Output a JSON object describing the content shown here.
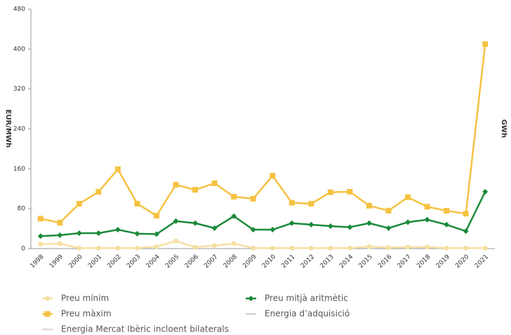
{
  "chart_data": {
    "type": "line",
    "y_label": "EUR/MWh",
    "y2_label": "GWh",
    "categories": [
      "1998",
      "1999",
      "2000",
      "2001",
      "2002",
      "2003",
      "2004",
      "2005",
      "2006",
      "2007",
      "2008",
      "2009",
      "2010",
      "2011",
      "2012",
      "2013",
      "2014",
      "2015",
      "2016",
      "2017",
      "2018",
      "2019",
      "2020",
      "2021"
    ],
    "ylim": [
      0,
      480
    ],
    "yticks": [
      0,
      80,
      160,
      240,
      320,
      400,
      480
    ],
    "grid": false,
    "series": [
      {
        "name": "Preu mínim",
        "color": "#f6dfa3",
        "marker": "circle",
        "values": [
          9,
          10,
          1,
          1,
          1,
          1,
          4,
          15,
          3,
          6,
          10,
          1,
          1,
          1,
          1,
          1,
          1,
          4,
          2,
          3,
          3,
          1,
          1,
          1
        ]
      },
      {
        "name": "Preu mitjà aritmètic",
        "color": "#1b8a3a",
        "marker": "diamond",
        "values": [
          25,
          27,
          31,
          31,
          38,
          30,
          29,
          55,
          51,
          41,
          65,
          38,
          38,
          51,
          48,
          45,
          43,
          51,
          41,
          53,
          58,
          48,
          35,
          114
        ]
      },
      {
        "name": "Preu màxim",
        "color": "#f5c242",
        "marker": "square",
        "values": [
          60,
          52,
          90,
          114,
          159,
          90,
          66,
          128,
          118,
          131,
          104,
          100,
          146,
          92,
          90,
          113,
          114,
          86,
          76,
          103,
          84,
          76,
          70,
          410
        ]
      },
      {
        "name": "Energia d’adquisició",
        "color": "#d0d0d0",
        "marker": "none",
        "axis": "y2",
        "values": [
          null,
          null,
          null,
          null,
          null,
          null,
          null,
          null,
          null,
          null,
          null,
          null,
          null,
          null,
          null,
          null,
          null,
          null,
          null,
          null,
          null,
          null,
          null,
          null
        ]
      },
      {
        "name": "Energia Mercat Ibèric incloent bilaterals",
        "color": "#dcdcdc",
        "marker": "none",
        "axis": "y2",
        "values": [
          null,
          null,
          null,
          null,
          null,
          null,
          null,
          null,
          null,
          null,
          null,
          null,
          null,
          null,
          null,
          null,
          null,
          null,
          null,
          null,
          null,
          null,
          null,
          null
        ]
      }
    ]
  }
}
